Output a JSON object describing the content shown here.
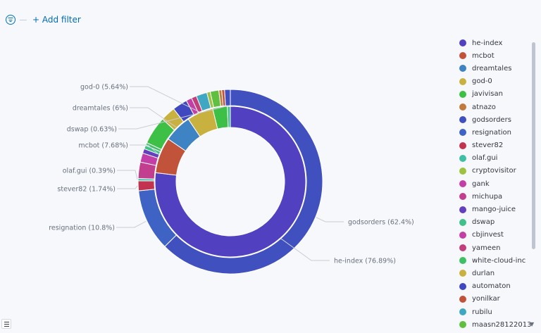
{
  "toolbar": {
    "add_filter_label": "+ Add filter"
  },
  "chart_data": {
    "type": "pie",
    "subtype": "donut",
    "title": "",
    "rings": [
      {
        "ring": "inner",
        "slices": [
          {
            "label": "he-index",
            "value": 76.89,
            "color": "#5140bf"
          },
          {
            "label": "mcbot",
            "value": 7.68,
            "color": "#c2533b"
          },
          {
            "label": "dreamtales",
            "value": 6,
            "color": "#3e83c4"
          },
          {
            "label": "god-0",
            "value": 5.64,
            "color": "#c9b13f"
          },
          {
            "label": "javivisan",
            "value": 3.15,
            "color": "#3ebf46"
          },
          {
            "label": "dswap",
            "value": 0.63,
            "color": "#41c188"
          }
        ]
      },
      {
        "ring": "outer",
        "slices": [
          {
            "label": "godsorders",
            "value": 62.4,
            "color": "#4051bf"
          },
          {
            "label": "resignation",
            "value": 10.8,
            "color": "#3e63c4"
          },
          {
            "label": "stever82",
            "value": 1.74,
            "color": "#c2334f"
          },
          {
            "label": "olaf.gui",
            "value": 0.39,
            "color": "#41bfa5"
          },
          {
            "label": "michupa",
            "value": 2.85,
            "color": "#c23f8f"
          },
          {
            "label": "cbjinvest",
            "value": 1.6,
            "color": "#c33fa8"
          },
          {
            "label": "mango-juice",
            "value": 0.8,
            "color": "#6440bf"
          },
          {
            "label": "dswap",
            "value": 0.63,
            "color": "#41c188"
          },
          {
            "label": "white-cloud-inc",
            "value": 0.5,
            "color": "#41bf64"
          },
          {
            "label": "javivisan",
            "value": 4.9,
            "color": "#3ebf46"
          },
          {
            "label": "durlan",
            "value": 2.6,
            "color": "#c9b13f"
          },
          {
            "label": "automaton",
            "value": 2.6,
            "color": "#4048bf"
          },
          {
            "label": "gank",
            "value": 1.0,
            "color": "#c33fa8"
          },
          {
            "label": "yameen",
            "value": 0.9,
            "color": "#c23f7c"
          },
          {
            "label": "rubilu",
            "value": 1.9,
            "color": "#3fa7c2"
          },
          {
            "label": "cryptovisitor",
            "value": 0.6,
            "color": "#9cc23f"
          },
          {
            "label": "maasn28122013",
            "value": 1.5,
            "color": "#5fbf40"
          },
          {
            "label": "atnazo",
            "value": 0.5,
            "color": "#c27a3f"
          },
          {
            "label": "yonilkar",
            "value": 0.5,
            "color": "#c2533b"
          },
          {
            "label": "godsorders",
            "value": 1.0,
            "color": "#4051bf"
          }
        ]
      }
    ],
    "callouts": [
      {
        "text": "god-0 (5.64%)",
        "side": "left"
      },
      {
        "text": "dreamtales (6%)",
        "side": "left"
      },
      {
        "text": "dswap (0.63%)",
        "side": "left"
      },
      {
        "text": "mcbot (7.68%)",
        "side": "left"
      },
      {
        "text": "olaf.gui (0.39%)",
        "side": "left"
      },
      {
        "text": "stever82 (1.74%)",
        "side": "left"
      },
      {
        "text": "resignation (10.8%)",
        "side": "left"
      },
      {
        "text": "godsorders (62.4%)",
        "side": "right"
      },
      {
        "text": "he-index (76.89%)",
        "side": "right"
      }
    ],
    "legend": {
      "placement": "right",
      "items": [
        {
          "label": "he-index",
          "color": "#5140bf"
        },
        {
          "label": "mcbot",
          "color": "#c2533b"
        },
        {
          "label": "dreamtales",
          "color": "#3e83c4"
        },
        {
          "label": "god-0",
          "color": "#c9b13f"
        },
        {
          "label": "javivisan",
          "color": "#3ebf46"
        },
        {
          "label": "atnazo",
          "color": "#c27a3f"
        },
        {
          "label": "godsorders",
          "color": "#4051bf"
        },
        {
          "label": "resignation",
          "color": "#3e63c4"
        },
        {
          "label": "stever82",
          "color": "#c2334f"
        },
        {
          "label": "olaf.gui",
          "color": "#41bfa5"
        },
        {
          "label": "cryptovisitor",
          "color": "#9cc23f"
        },
        {
          "label": "gank",
          "color": "#c33fa8"
        },
        {
          "label": "michupa",
          "color": "#c23f8f"
        },
        {
          "label": "mango-juice",
          "color": "#6440bf"
        },
        {
          "label": "dswap",
          "color": "#41c188"
        },
        {
          "label": "cbjinvest",
          "color": "#c33fa8"
        },
        {
          "label": "yameen",
          "color": "#c23f7c"
        },
        {
          "label": "white-cloud-inc",
          "color": "#41bf64"
        },
        {
          "label": "durlan",
          "color": "#c9b13f"
        },
        {
          "label": "automaton",
          "color": "#4048bf"
        },
        {
          "label": "yonilkar",
          "color": "#c2533b"
        },
        {
          "label": "rubilu",
          "color": "#3fa7c2"
        },
        {
          "label": "maasn28122013",
          "color": "#5fbf40"
        }
      ]
    }
  }
}
